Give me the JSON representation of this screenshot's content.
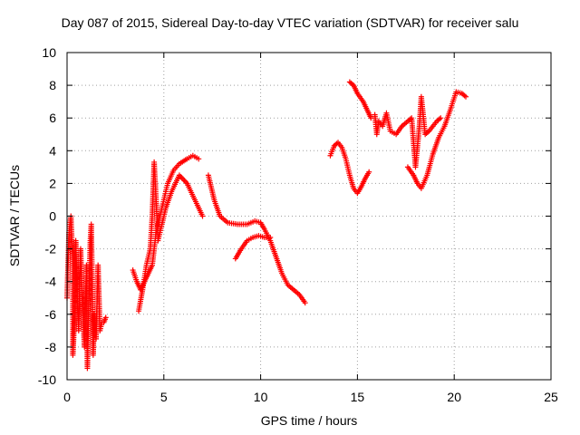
{
  "chart_data": {
    "type": "scatter",
    "title": "Day 087 of 2015, Sidereal Day-to-day VTEC variation (SDTVAR) for receiver salu",
    "xlabel": "GPS time / hours",
    "ylabel": "SDTVAR / TECUs",
    "xlim": [
      0,
      25
    ],
    "ylim": [
      -10,
      10
    ],
    "xticks": [
      "0",
      "5",
      "10",
      "15",
      "20",
      "25"
    ],
    "yticks": [
      "-10",
      "-8",
      "-6",
      "-4",
      "-2",
      "0",
      "2",
      "4",
      "6",
      "8",
      "10"
    ],
    "grid": true,
    "marker": "+",
    "color": "#ff0000",
    "segments": [
      [
        [
          0.0,
          -5.0
        ],
        [
          0.1,
          -1.0
        ],
        [
          0.2,
          0.0
        ],
        [
          0.3,
          -3.0
        ],
        [
          0.3,
          -8.5
        ],
        [
          0.4,
          -6.0
        ],
        [
          0.45,
          -1.5
        ],
        [
          0.5,
          -4.0
        ],
        [
          0.6,
          -7.0
        ],
        [
          0.7,
          -2.0
        ],
        [
          0.8,
          -5.5
        ],
        [
          0.9,
          -8.0
        ],
        [
          1.0,
          -3.0
        ],
        [
          1.05,
          -9.3
        ],
        [
          1.1,
          -6.5
        ],
        [
          1.2,
          -1.5
        ],
        [
          1.25,
          -0.5
        ],
        [
          1.3,
          -4.0
        ],
        [
          1.35,
          -8.5
        ],
        [
          1.4,
          -6.0
        ],
        [
          1.5,
          -7.5
        ],
        [
          1.6,
          -3.0
        ],
        [
          1.7,
          -7.0
        ],
        [
          1.8,
          -6.5
        ],
        [
          1.9,
          -6.5
        ],
        [
          2.0,
          -6.2
        ]
      ],
      [
        [
          3.4,
          -3.3
        ],
        [
          3.6,
          -4.0
        ],
        [
          3.8,
          -4.5
        ],
        [
          4.0,
          -4.0
        ],
        [
          4.2,
          -3.5
        ],
        [
          4.4,
          -3.0
        ],
        [
          4.5,
          -2.0
        ],
        [
          4.6,
          -1.0
        ],
        [
          4.8,
          0.0
        ],
        [
          5.0,
          1.0
        ],
        [
          5.2,
          2.0
        ],
        [
          5.5,
          2.8
        ],
        [
          5.8,
          3.2
        ],
        [
          6.2,
          3.5
        ],
        [
          6.5,
          3.7
        ],
        [
          6.8,
          3.5
        ]
      ],
      [
        [
          3.7,
          -5.8
        ],
        [
          3.9,
          -4.5
        ],
        [
          4.1,
          -3.0
        ],
        [
          4.3,
          -2.0
        ],
        [
          4.4,
          0.0
        ],
        [
          4.5,
          3.3
        ],
        [
          4.6,
          1.0
        ],
        [
          4.7,
          -1.5
        ],
        [
          4.9,
          -0.5
        ],
        [
          5.1,
          0.5
        ],
        [
          5.4,
          1.5
        ],
        [
          5.8,
          2.5
        ],
        [
          6.2,
          2.0
        ],
        [
          6.6,
          1.0
        ],
        [
          7.0,
          0.0
        ]
      ],
      [
        [
          7.3,
          2.5
        ],
        [
          7.6,
          1.0
        ],
        [
          7.9,
          0.0
        ],
        [
          8.3,
          -0.4
        ],
        [
          8.8,
          -0.5
        ],
        [
          9.3,
          -0.5
        ],
        [
          9.7,
          -0.3
        ],
        [
          10.0,
          -0.4
        ],
        [
          10.2,
          -0.8
        ],
        [
          10.5,
          -1.5
        ],
        [
          10.8,
          -2.5
        ],
        [
          11.1,
          -3.5
        ],
        [
          11.4,
          -4.2
        ],
        [
          11.7,
          -4.5
        ],
        [
          12.0,
          -4.8
        ],
        [
          12.3,
          -5.3
        ]
      ],
      [
        [
          8.7,
          -2.6
        ],
        [
          9.0,
          -2.0
        ],
        [
          9.3,
          -1.5
        ],
        [
          9.6,
          -1.3
        ],
        [
          9.9,
          -1.2
        ],
        [
          10.2,
          -1.3
        ],
        [
          10.5,
          -1.3
        ]
      ],
      [
        [
          13.6,
          3.7
        ],
        [
          13.8,
          4.3
        ],
        [
          14.0,
          4.5
        ],
        [
          14.2,
          4.2
        ],
        [
          14.4,
          3.5
        ],
        [
          14.6,
          2.5
        ],
        [
          14.8,
          1.7
        ],
        [
          15.0,
          1.4
        ],
        [
          15.2,
          1.8
        ],
        [
          15.4,
          2.3
        ],
        [
          15.6,
          2.7
        ]
      ],
      [
        [
          14.6,
          8.2
        ],
        [
          14.8,
          8.0
        ],
        [
          15.0,
          7.5
        ],
        [
          15.3,
          7.0
        ],
        [
          15.5,
          6.5
        ],
        [
          15.7,
          6.0
        ]
      ],
      [
        [
          15.9,
          6.2
        ],
        [
          16.0,
          5.0
        ],
        [
          16.1,
          5.8
        ],
        [
          16.3,
          5.5
        ],
        [
          16.5,
          6.3
        ],
        [
          16.7,
          5.2
        ],
        [
          17.0,
          5.0
        ],
        [
          17.3,
          5.5
        ],
        [
          17.6,
          5.8
        ],
        [
          17.8,
          6.0
        ],
        [
          18.0,
          3.0
        ],
        [
          18.2,
          5.5
        ],
        [
          18.3,
          7.3
        ],
        [
          18.5,
          5.0
        ],
        [
          18.7,
          5.2
        ],
        [
          18.9,
          5.5
        ],
        [
          19.1,
          5.8
        ],
        [
          19.3,
          6.0
        ]
      ],
      [
        [
          17.6,
          3.0
        ],
        [
          17.9,
          2.5
        ],
        [
          18.1,
          2.0
        ],
        [
          18.3,
          1.7
        ],
        [
          18.6,
          2.5
        ],
        [
          18.9,
          3.8
        ],
        [
          19.2,
          4.8
        ],
        [
          19.5,
          5.5
        ],
        [
          19.8,
          6.5
        ],
        [
          20.1,
          7.6
        ],
        [
          20.4,
          7.5
        ],
        [
          20.6,
          7.3
        ]
      ]
    ]
  }
}
